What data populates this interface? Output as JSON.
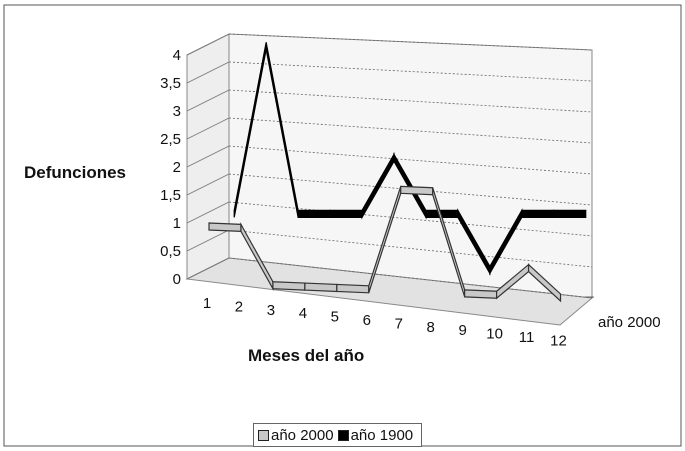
{
  "chart_data": {
    "type": "line",
    "title": "",
    "ylabel": "Defunciones",
    "xlabel": "Meses del año",
    "categories": [
      "1",
      "2",
      "3",
      "4",
      "5",
      "6",
      "7",
      "8",
      "9",
      "10",
      "11",
      "12"
    ],
    "y_ticks": [
      "0",
      "0,5",
      "1",
      "1,5",
      "2",
      "2,5",
      "3",
      "3,5",
      "4"
    ],
    "ylim": [
      0,
      4
    ],
    "depth_label": "año 2000",
    "series": [
      {
        "name": "año 2000",
        "color": "#c8c8c8",
        "values": [
          1,
          1,
          0,
          0,
          0,
          0,
          1.8,
          1.8,
          0,
          0,
          0.5,
          0
        ]
      },
      {
        "name": "año 1900",
        "color": "#000000",
        "values": [
          1,
          4,
          1,
          1,
          1,
          2,
          1,
          1,
          0,
          1,
          1,
          1
        ]
      }
    ],
    "grid": true,
    "legend_position": "bottom"
  }
}
